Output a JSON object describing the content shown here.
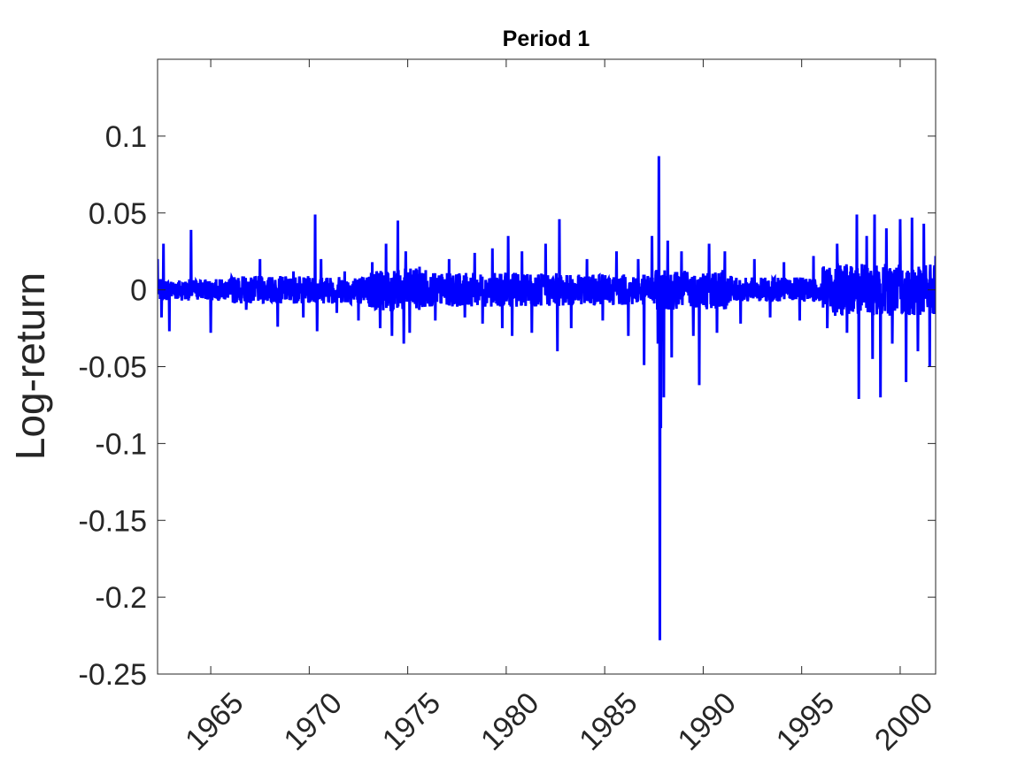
{
  "chart_data": {
    "type": "line",
    "title": "Period 1",
    "xlabel": "",
    "ylabel": "Log-return",
    "xlim": [
      1962.3,
      2001.8
    ],
    "ylim": [
      -0.25,
      0.15
    ],
    "xticks": [
      1965,
      1970,
      1975,
      1980,
      1985,
      1990,
      1995,
      2000
    ],
    "xtick_labels": [
      "1965",
      "1970",
      "1975",
      "1980",
      "1985",
      "1990",
      "1995",
      "2000"
    ],
    "yticks": [
      -0.25,
      -0.2,
      -0.15,
      -0.1,
      -0.05,
      0,
      0.05,
      0.1
    ],
    "ytick_labels": [
      "-0.25",
      "-0.2",
      "-0.15",
      "-0.1",
      "-0.05",
      "0",
      "0.05",
      "0.1"
    ],
    "grid": false,
    "series": [
      {
        "color": "#0000ff",
        "x": [
          1962.3,
          1962.5,
          1962.6,
          1962.9,
          1963.2,
          1963.8,
          1964.0,
          1965.0,
          1966.1,
          1966.8,
          1967.5,
          1968.4,
          1969.2,
          1969.7,
          1970.3,
          1970.4,
          1970.6,
          1971.4,
          1971.8,
          1972.5,
          1973.2,
          1973.6,
          1973.9,
          1974.2,
          1974.5,
          1974.8,
          1974.9,
          1975.1,
          1975.6,
          1976.4,
          1977.1,
          1977.9,
          1978.4,
          1978.8,
          1979.3,
          1979.8,
          1980.1,
          1980.3,
          1980.8,
          1981.3,
          1982.0,
          1982.6,
          1982.7,
          1983.3,
          1984.1,
          1984.9,
          1985.6,
          1986.2,
          1986.7,
          1987.0,
          1987.4,
          1987.7,
          1987.75,
          1987.8,
          1987.85,
          1988.0,
          1988.2,
          1988.4,
          1988.9,
          1989.5,
          1989.8,
          1990.3,
          1990.7,
          1991.1,
          1991.9,
          1992.6,
          1993.4,
          1994.1,
          1994.9,
          1995.6,
          1996.3,
          1996.8,
          1997.3,
          1997.8,
          1997.9,
          1998.3,
          1998.6,
          1998.7,
          1999.0,
          1999.3,
          1999.6,
          2000.0,
          2000.3,
          2000.6,
          2000.9,
          2001.2,
          2001.5,
          2001.8
        ],
        "y": [
          0.02,
          -0.018,
          0.03,
          -0.027,
          0.004,
          -0.006,
          0.039,
          -0.028,
          0.007,
          -0.013,
          0.02,
          -0.024,
          0.012,
          -0.018,
          0.049,
          -0.027,
          0.02,
          -0.015,
          0.012,
          -0.02,
          0.018,
          -0.025,
          0.03,
          -0.03,
          0.045,
          -0.035,
          0.025,
          -0.028,
          0.015,
          -0.02,
          0.02,
          -0.018,
          0.024,
          -0.022,
          0.027,
          -0.025,
          0.035,
          -0.03,
          0.025,
          -0.028,
          0.03,
          -0.04,
          0.046,
          -0.025,
          0.02,
          -0.02,
          0.025,
          -0.03,
          0.02,
          -0.049,
          0.035,
          -0.035,
          0.087,
          -0.228,
          -0.09,
          -0.07,
          0.032,
          -0.044,
          0.025,
          -0.03,
          -0.062,
          0.03,
          -0.028,
          0.025,
          -0.022,
          0.02,
          -0.018,
          0.018,
          -0.02,
          0.022,
          -0.025,
          0.03,
          -0.028,
          0.049,
          -0.071,
          0.035,
          -0.045,
          0.049,
          -0.07,
          0.04,
          -0.035,
          0.046,
          -0.06,
          0.047,
          -0.04,
          0.043,
          -0.05,
          0.022
        ]
      }
    ]
  }
}
